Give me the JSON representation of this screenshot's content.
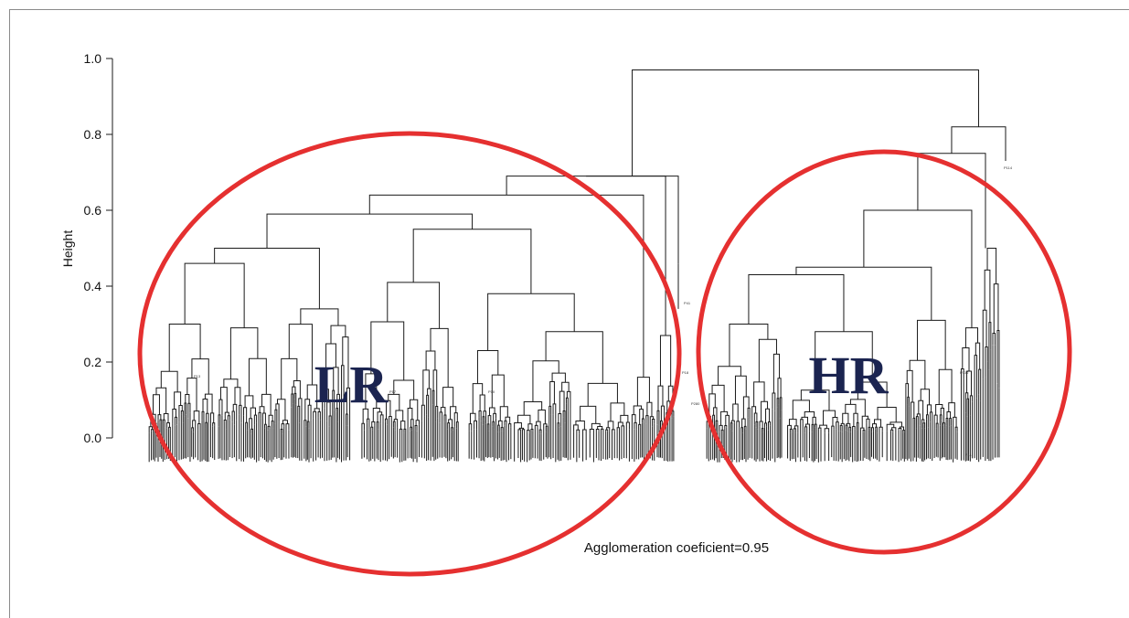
{
  "chart_data": {
    "type": "dendrogram",
    "ylabel": "Height",
    "ylim": [
      0,
      1.0
    ],
    "yticks": [
      0.0,
      0.2,
      0.4,
      0.6,
      0.8,
      1.0
    ],
    "ytick_labels": [
      "0.0",
      "0.2",
      "0.4",
      "0.6",
      "0.8",
      "1.0"
    ],
    "caption": "Agglomeration coeficient=0.95",
    "clusters": [
      {
        "label": "LR",
        "color": "#e53030"
      },
      {
        "label": "HR",
        "color": "#e53030"
      }
    ],
    "root_height": 0.97,
    "merges": [
      {
        "left": "LR",
        "right": "HR",
        "height": 0.97
      },
      {
        "group": "LR",
        "height": 0.69
      },
      {
        "group": "LR-left",
        "height": 0.59
      },
      {
        "group": "LR-right",
        "height": 0.55
      },
      {
        "group": "LR-left-a",
        "height": 0.5
      },
      {
        "group": "LR-left-a1",
        "height": 0.46
      },
      {
        "group": "LR-right-b",
        "height": 0.38
      },
      {
        "group": "HR",
        "height": 0.82
      },
      {
        "group": "HR-main",
        "height": 0.75
      },
      {
        "group": "HR-main-a",
        "height": 0.6
      },
      {
        "group": "HR-main-b",
        "height": 0.45
      },
      {
        "group": "HR-main-c",
        "height": 0.43
      }
    ],
    "leaf_labels_visible": [
      "P41",
      "P18",
      "P114",
      "P13",
      "P10",
      "P17",
      "P280",
      "P136",
      "P11"
    ]
  }
}
